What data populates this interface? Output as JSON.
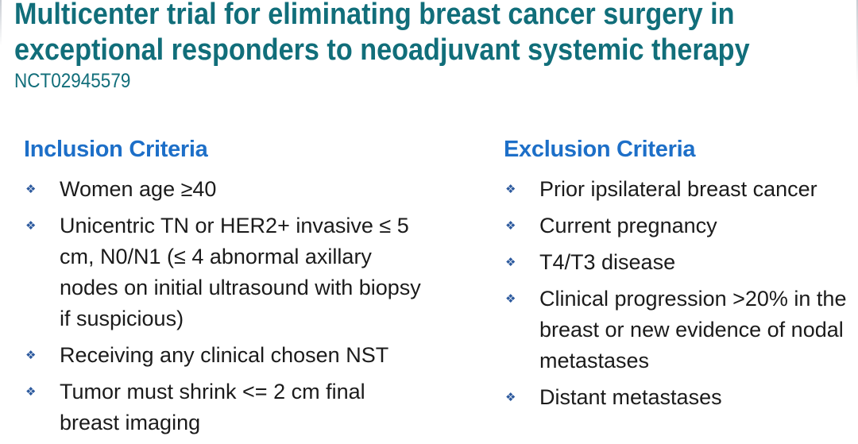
{
  "header": {
    "title_lines": [
      "Multicenter trial for eliminating breast cancer surgery in",
      "exceptional responders to neoadjuvant systemic therapy"
    ],
    "trial_id": "NCT02945579"
  },
  "inclusion": {
    "heading": "Inclusion Criteria",
    "items": [
      "Women age ≥40",
      "Unicentric TN or HER2+ invasive ≤ 5 cm, N0/N1 (≤ 4 abnormal axillary nodes on initial ultrasound with biopsy if suspicious)",
      "Receiving any clinical chosen NST",
      "Tumor must shrink <= 2 cm final breast imaging"
    ]
  },
  "exclusion": {
    "heading": "Exclusion Criteria",
    "items": [
      "Prior ipsilateral breast cancer",
      "Current pregnancy",
      "T4/T3 disease",
      "Clinical progression >20% in the breast or new evidence of nodal metastases",
      "Distant metastases"
    ]
  },
  "bullet_glyph": "❖",
  "colors": {
    "title_teal": "#116E7A",
    "heading_blue": "#1D6FC8",
    "bullet_blue": "#2D5A9E",
    "body_text": "#1B1B1B"
  }
}
